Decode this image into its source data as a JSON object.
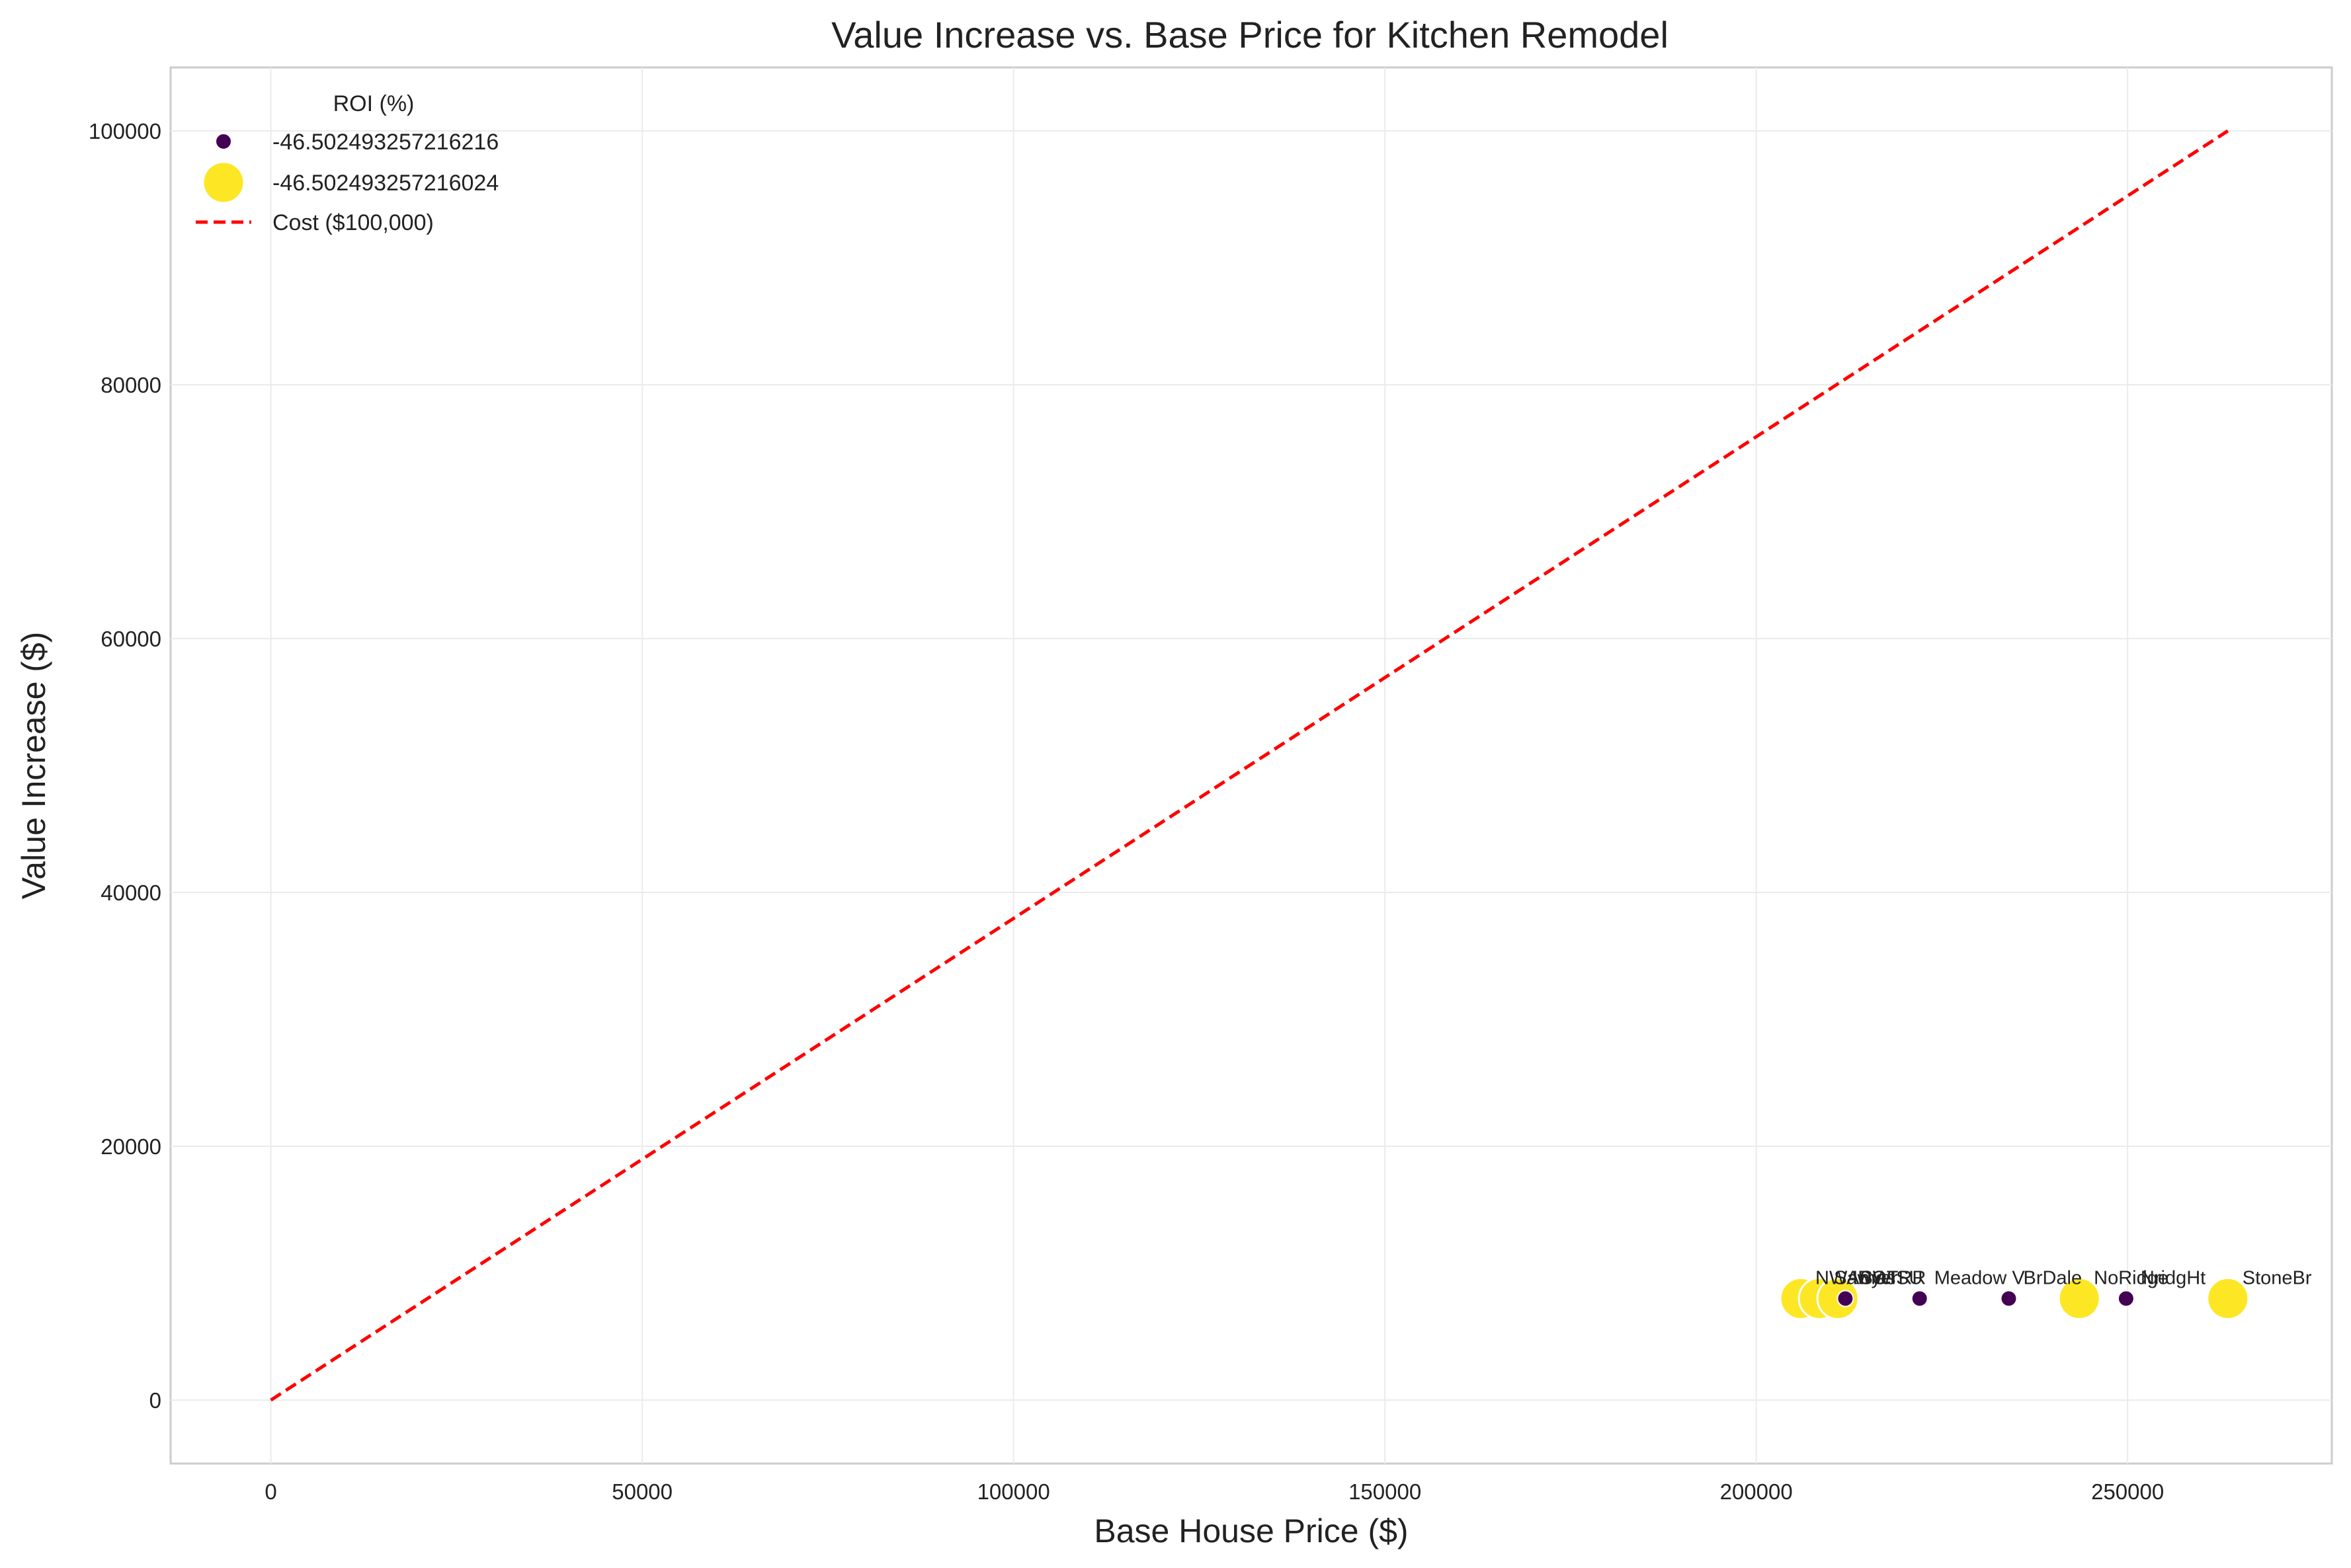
{
  "chart_data": {
    "type": "scatter",
    "title": "Value Increase vs. Base Price for Kitchen Remodel",
    "xlabel": "Base House Price ($)",
    "ylabel": "Value Increase ($)",
    "xlim": [
      -13500,
      277500
    ],
    "ylim": [
      -5000,
      105000
    ],
    "xticks": [
      0,
      50000,
      100000,
      150000,
      200000,
      250000
    ],
    "yticks": [
      0,
      20000,
      40000,
      60000,
      80000,
      100000
    ],
    "grid": true,
    "legend": {
      "title": "ROI (%)",
      "placement": "top-left",
      "entries": [
        {
          "label": "-46.502493257216216",
          "color": "#440154",
          "marker": "small-circle"
        },
        {
          "label": "-46.502493257216024",
          "color": "#fde725",
          "marker": "large-circle"
        },
        {
          "label": "Cost ($100,000)",
          "color": "#ff0000",
          "marker": "dashed-line"
        }
      ]
    },
    "cost_line": {
      "name": "Cost ($100,000)",
      "x": [
        0,
        263500
      ],
      "y": [
        0,
        100000
      ],
      "color": "#ff0000"
    },
    "series": [
      {
        "name": "-46.502493257216216",
        "color": "#440154",
        "size": "small",
        "points": [
          {
            "x": 212000,
            "y": 8000,
            "label": "SWISU"
          },
          {
            "x": 222000,
            "y": 8000,
            "label": "Meadow V"
          },
          {
            "x": 234000,
            "y": 8000,
            "label": "BrDale"
          },
          {
            "x": 249800,
            "y": 8000,
            "label": "NridgHt"
          }
        ]
      },
      {
        "name": "-46.502493257216024",
        "color": "#fde725",
        "size": "large",
        "points": [
          {
            "x": 206000,
            "y": 8000,
            "label": "NWAmes"
          },
          {
            "x": 208500,
            "y": 8000,
            "label": "Sawyer"
          },
          {
            "x": 211000,
            "y": 8000,
            "label": "IDOTRR"
          },
          {
            "x": 243500,
            "y": 8000,
            "label": "NoRidge"
          },
          {
            "x": 263500,
            "y": 8000,
            "label": "StoneBr"
          }
        ]
      }
    ]
  }
}
